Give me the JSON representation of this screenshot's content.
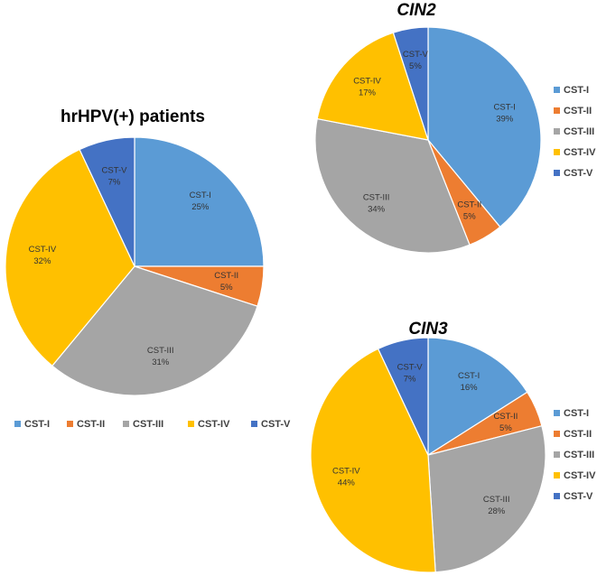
{
  "colors": {
    "CST-I": "#5B9BD5",
    "CST-II": "#ED7D31",
    "CST-III": "#A5A5A5",
    "CST-IV": "#FFC000",
    "CST-V": "#4472C4"
  },
  "chart_data": [
    {
      "id": "hrhpv",
      "type": "pie",
      "title": "hrHPV(+) patients",
      "legend_position": "bottom",
      "categories": [
        "CST-I",
        "CST-II",
        "CST-III",
        "CST-IV",
        "CST-V"
      ],
      "values": [
        25,
        5,
        31,
        32,
        7
      ],
      "value_labels": [
        "25%",
        "5%",
        "31%",
        "32%",
        "7%"
      ]
    },
    {
      "id": "cin2",
      "type": "pie",
      "title": "CIN2",
      "legend_position": "right",
      "categories": [
        "CST-I",
        "CST-II",
        "CST-III",
        "CST-IV",
        "CST-V"
      ],
      "values": [
        39,
        5,
        34,
        17,
        5
      ],
      "value_labels": [
        "39%",
        "5%",
        "34%",
        "17%",
        "5%"
      ]
    },
    {
      "id": "cin3",
      "type": "pie",
      "title": "CIN3",
      "legend_position": "right",
      "categories": [
        "CST-I",
        "CST-II",
        "CST-III",
        "CST-IV",
        "CST-V"
      ],
      "values": [
        16,
        5,
        28,
        44,
        7
      ],
      "value_labels": [
        "16%",
        "5%",
        "28%",
        "44%",
        "7%"
      ]
    }
  ]
}
